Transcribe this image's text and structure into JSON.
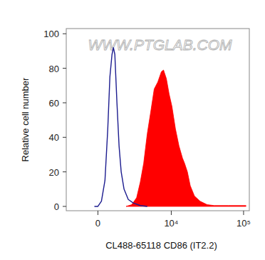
{
  "chart_data": {
    "type": "area",
    "watermark": "WWW.PTGLAB.COM",
    "x_label": "CL488-65118 CD86 (IT2.2)",
    "y_label": "Relative cell number",
    "log": "x",
    "xlim": [
      -2330,
      120000
    ],
    "xticks": [
      0,
      {
        "value": 10000,
        "label": "10⁴"
      },
      {
        "value": 100000,
        "label": "10⁵"
      }
    ],
    "ylim": [
      -2.5,
      103
    ],
    "yticks": [
      0,
      20,
      40,
      60,
      80,
      100
    ],
    "series": [
      {
        "type": "line",
        "color": "#1c1c8f",
        "x": [
          -221,
          0,
          221,
          444,
          627,
          767,
          911,
          1009,
          1110,
          1264,
          1424,
          1591,
          1827,
          2205,
          2698,
          3520,
          4508
        ],
        "values": [
          0,
          0,
          3,
          15,
          45,
          75,
          88,
          92,
          88,
          60,
          35,
          20,
          10,
          4,
          2,
          0.5,
          0
        ]
      },
      {
        "type": "area",
        "color": "#ff0000",
        "x": [
          2006,
          2546,
          3073,
          3520,
          3979,
          4508,
          5090,
          5711,
          6434,
          7242,
          7775,
          8532,
          9337,
          10211,
          11432,
          12818,
          14336,
          15322,
          16782,
          18379,
          21022,
          25163,
          31453,
          39341,
          61526,
          107671
        ],
        "values": [
          0,
          1,
          5,
          14,
          25,
          42,
          55,
          68,
          72,
          78,
          79,
          74,
          65,
          58,
          45,
          35,
          28,
          25,
          20,
          12,
          6,
          3,
          1,
          0.5,
          0.5,
          0.5
        ]
      }
    ]
  }
}
